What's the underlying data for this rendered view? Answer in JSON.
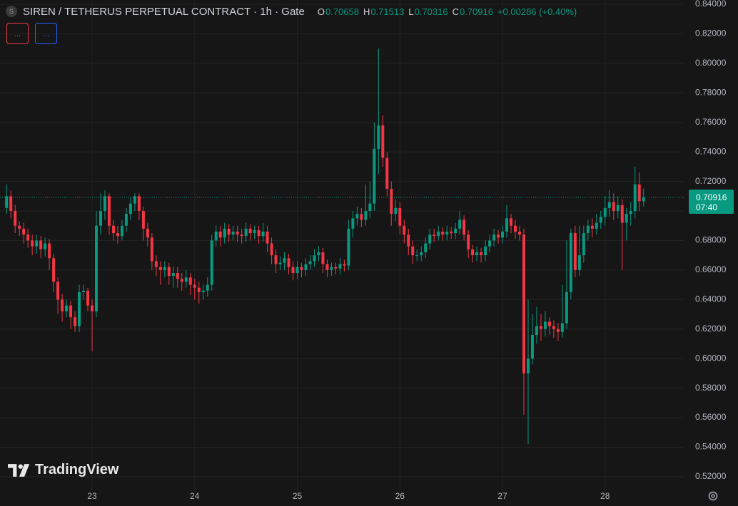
{
  "chart_data": {
    "type": "candlestick",
    "title": "SIREN / TETHERUS PERPETUAL CONTRACT · 1h · Gate",
    "symbol_icon": "S",
    "ohlc_labels": [
      "O",
      "H",
      "L",
      "C"
    ],
    "change": "+0.00286 (+0.40%)",
    "buttons": [
      "...",
      "..."
    ],
    "countdown": "07:40",
    "watermark": "TradingView",
    "up_color": "#089981",
    "down_color": "#f23645",
    "grid": true,
    "ylim": [
      0.5098,
      0.8429
    ],
    "yticks": [
      {
        "value": 0.52,
        "label": "0.52000"
      },
      {
        "value": 0.54,
        "label": "0.54000"
      },
      {
        "value": 0.56,
        "label": "0.56000"
      },
      {
        "value": 0.58,
        "label": "0.58000"
      },
      {
        "value": 0.6,
        "label": "0.60000"
      },
      {
        "value": 0.62,
        "label": "0.62000"
      },
      {
        "value": 0.64,
        "label": "0.64000"
      },
      {
        "value": 0.66,
        "label": "0.66000"
      },
      {
        "value": 0.68,
        "label": "0.68000"
      },
      {
        "value": 0.7,
        "label": "0.70000"
      },
      {
        "value": 0.72,
        "label": "0.72000"
      },
      {
        "value": 0.74,
        "label": "0.74000"
      },
      {
        "value": 0.76,
        "label": "0.76000"
      },
      {
        "value": 0.78,
        "label": "0.78000"
      },
      {
        "value": 0.8,
        "label": "0.80000"
      },
      {
        "value": 0.82,
        "label": "0.82000"
      },
      {
        "value": 0.84,
        "label": "0.84000"
      }
    ],
    "xlim": [
      -1.54,
      158.4
    ],
    "xticks": [
      {
        "value": 20,
        "label": "23"
      },
      {
        "value": 44,
        "label": "24"
      },
      {
        "value": 68,
        "label": "25"
      },
      {
        "value": 92,
        "label": "26"
      },
      {
        "value": 116,
        "label": "27"
      },
      {
        "value": 140,
        "label": "28"
      }
    ],
    "open": [
      0.702,
      0.71,
      0.7,
      0.69,
      0.688,
      0.684,
      0.68,
      0.676,
      0.68,
      0.674,
      0.678,
      0.668,
      0.652,
      0.64,
      0.632,
      0.636,
      0.628,
      0.622,
      0.645,
      0.646,
      0.636,
      0.632,
      0.69,
      0.7,
      0.71,
      0.69,
      0.685,
      0.683,
      0.69,
      0.698,
      0.705,
      0.71,
      0.7,
      0.688,
      0.682,
      0.666,
      0.662,
      0.66,
      0.662,
      0.656,
      0.658,
      0.654,
      0.652,
      0.655,
      0.65,
      0.648,
      0.645,
      0.646,
      0.65,
      0.68,
      0.686,
      0.682,
      0.688,
      0.684,
      0.686,
      0.684,
      0.683,
      0.688,
      0.685,
      0.687,
      0.683,
      0.686,
      0.678,
      0.67,
      0.664,
      0.665,
      0.668,
      0.662,
      0.658,
      0.662,
      0.66,
      0.664,
      0.666,
      0.67,
      0.672,
      0.664,
      0.66,
      0.662,
      0.661,
      0.664,
      0.663,
      0.688,
      0.695,
      0.698,
      0.694,
      0.7,
      0.705,
      0.742,
      0.758,
      0.736,
      0.715,
      0.698,
      0.702,
      0.69,
      0.684,
      0.676,
      0.67,
      0.67,
      0.672,
      0.678,
      0.684,
      0.683,
      0.686,
      0.684,
      0.686,
      0.685,
      0.688,
      0.694,
      0.684,
      0.674,
      0.67,
      0.672,
      0.67,
      0.676,
      0.68,
      0.684,
      0.682,
      0.686,
      0.695,
      0.69,
      0.686,
      0.684,
      0.59,
      0.6,
      0.616,
      0.622,
      0.62,
      0.625,
      0.622,
      0.62,
      0.618,
      0.624,
      0.645,
      0.685,
      0.66,
      0.67,
      0.685,
      0.69,
      0.688,
      0.692,
      0.696,
      0.702,
      0.706,
      0.7,
      0.704,
      0.692,
      0.698,
      0.7,
      0.718,
      0.70658
    ],
    "high": [
      0.718,
      0.714,
      0.704,
      0.693,
      0.692,
      0.688,
      0.684,
      0.684,
      0.683,
      0.682,
      0.681,
      0.671,
      0.655,
      0.644,
      0.64,
      0.639,
      0.632,
      0.65,
      0.65,
      0.648,
      0.64,
      0.7,
      0.712,
      0.714,
      0.712,
      0.694,
      0.69,
      0.694,
      0.702,
      0.709,
      0.712,
      0.712,
      0.703,
      0.692,
      0.685,
      0.67,
      0.666,
      0.666,
      0.665,
      0.662,
      0.662,
      0.658,
      0.66,
      0.658,
      0.654,
      0.652,
      0.65,
      0.655,
      0.684,
      0.69,
      0.69,
      0.692,
      0.691,
      0.69,
      0.69,
      0.688,
      0.692,
      0.691,
      0.69,
      0.69,
      0.692,
      0.69,
      0.682,
      0.674,
      0.669,
      0.672,
      0.671,
      0.666,
      0.666,
      0.665,
      0.668,
      0.67,
      0.674,
      0.676,
      0.675,
      0.667,
      0.665,
      0.665,
      0.668,
      0.667,
      0.694,
      0.7,
      0.703,
      0.702,
      0.718,
      0.72,
      0.76,
      0.81,
      0.765,
      0.74,
      0.72,
      0.708,
      0.706,
      0.694,
      0.688,
      0.68,
      0.674,
      0.676,
      0.682,
      0.688,
      0.688,
      0.69,
      0.689,
      0.69,
      0.689,
      0.692,
      0.7,
      0.697,
      0.687,
      0.677,
      0.676,
      0.675,
      0.68,
      0.684,
      0.688,
      0.687,
      0.69,
      0.704,
      0.698,
      0.694,
      0.69,
      0.688,
      0.64,
      0.63,
      0.635,
      0.63,
      0.632,
      0.628,
      0.626,
      0.624,
      0.65,
      0.68,
      0.688,
      0.69,
      0.69,
      0.69,
      0.694,
      0.695,
      0.698,
      0.7,
      0.71,
      0.714,
      0.712,
      0.71,
      0.708,
      0.702,
      0.706,
      0.73,
      0.726,
      0.71513
    ],
    "low": [
      0.698,
      0.695,
      0.685,
      0.683,
      0.678,
      0.675,
      0.67,
      0.671,
      0.668,
      0.669,
      0.66,
      0.645,
      0.63,
      0.625,
      0.628,
      0.62,
      0.618,
      0.618,
      0.64,
      0.632,
      0.605,
      0.628,
      0.684,
      0.694,
      0.684,
      0.68,
      0.678,
      0.68,
      0.686,
      0.694,
      0.7,
      0.694,
      0.68,
      0.676,
      0.66,
      0.656,
      0.65,
      0.655,
      0.65,
      0.648,
      0.648,
      0.646,
      0.648,
      0.643,
      0.64,
      0.637,
      0.64,
      0.642,
      0.646,
      0.676,
      0.676,
      0.678,
      0.679,
      0.68,
      0.679,
      0.678,
      0.679,
      0.68,
      0.681,
      0.678,
      0.679,
      0.672,
      0.664,
      0.658,
      0.66,
      0.66,
      0.657,
      0.653,
      0.654,
      0.655,
      0.656,
      0.66,
      0.662,
      0.666,
      0.658,
      0.655,
      0.656,
      0.657,
      0.657,
      0.659,
      0.66,
      0.682,
      0.69,
      0.689,
      0.69,
      0.695,
      0.7,
      0.725,
      0.73,
      0.71,
      0.69,
      0.693,
      0.684,
      0.678,
      0.67,
      0.664,
      0.666,
      0.666,
      0.668,
      0.674,
      0.679,
      0.68,
      0.68,
      0.68,
      0.681,
      0.681,
      0.684,
      0.68,
      0.668,
      0.665,
      0.666,
      0.665,
      0.666,
      0.672,
      0.676,
      0.678,
      0.678,
      0.682,
      0.685,
      0.681,
      0.68,
      0.562,
      0.542,
      0.596,
      0.61,
      0.612,
      0.615,
      0.616,
      0.614,
      0.612,
      0.614,
      0.62,
      0.64,
      0.655,
      0.656,
      0.665,
      0.68,
      0.682,
      0.684,
      0.688,
      0.69,
      0.696,
      0.694,
      0.695,
      0.66,
      0.68,
      0.69,
      0.695,
      0.7,
      0.70316
    ],
    "close": [
      0.71,
      0.7,
      0.69,
      0.688,
      0.684,
      0.68,
      0.676,
      0.68,
      0.674,
      0.678,
      0.668,
      0.652,
      0.64,
      0.632,
      0.636,
      0.628,
      0.622,
      0.645,
      0.646,
      0.636,
      0.632,
      0.69,
      0.7,
      0.71,
      0.69,
      0.685,
      0.683,
      0.69,
      0.698,
      0.705,
      0.71,
      0.7,
      0.688,
      0.682,
      0.666,
      0.662,
      0.66,
      0.662,
      0.656,
      0.658,
      0.654,
      0.652,
      0.655,
      0.65,
      0.648,
      0.645,
      0.646,
      0.65,
      0.68,
      0.686,
      0.682,
      0.688,
      0.684,
      0.686,
      0.684,
      0.683,
      0.688,
      0.685,
      0.687,
      0.683,
      0.686,
      0.678,
      0.67,
      0.664,
      0.665,
      0.668,
      0.662,
      0.658,
      0.662,
      0.66,
      0.664,
      0.666,
      0.67,
      0.672,
      0.664,
      0.66,
      0.662,
      0.661,
      0.664,
      0.663,
      0.688,
      0.695,
      0.698,
      0.694,
      0.7,
      0.705,
      0.742,
      0.758,
      0.736,
      0.715,
      0.698,
      0.702,
      0.69,
      0.684,
      0.676,
      0.67,
      0.67,
      0.672,
      0.678,
      0.684,
      0.683,
      0.686,
      0.684,
      0.686,
      0.685,
      0.688,
      0.694,
      0.684,
      0.674,
      0.67,
      0.672,
      0.67,
      0.676,
      0.68,
      0.684,
      0.682,
      0.686,
      0.695,
      0.69,
      0.686,
      0.684,
      0.59,
      0.6,
      0.616,
      0.622,
      0.62,
      0.625,
      0.622,
      0.62,
      0.618,
      0.624,
      0.645,
      0.685,
      0.66,
      0.67,
      0.685,
      0.69,
      0.688,
      0.692,
      0.696,
      0.702,
      0.706,
      0.7,
      0.704,
      0.692,
      0.698,
      0.7,
      0.718,
      0.70658,
      0.70916
    ]
  }
}
